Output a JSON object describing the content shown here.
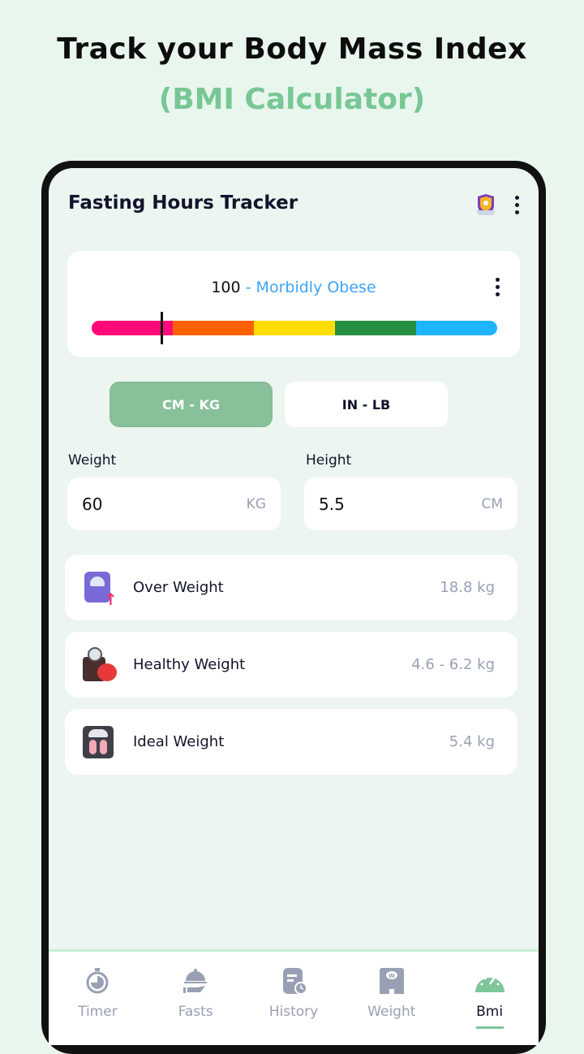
{
  "promo": {
    "headline": "Track your Body Mass Index",
    "subheadline": "(BMI Calculator)"
  },
  "app": {
    "title": "Fasting Hours Tracker",
    "icons": [
      "trophy-icon",
      "more-vertical-icon"
    ]
  },
  "bmi_card": {
    "value": "100",
    "category": "- Morbidly Obese",
    "scale_colors": [
      "#ff0a78",
      "#ff6000",
      "#ffdd00",
      "#248f42",
      "#1db4fb"
    ],
    "marker_position_percent": 17
  },
  "units": {
    "metric": "CM - KG",
    "imperial": "IN - LB",
    "selected": "CM - KG"
  },
  "weight": {
    "label": "Weight",
    "value": "60",
    "unit": "KG"
  },
  "height": {
    "label": "Height",
    "value": "5.5",
    "unit": "CM"
  },
  "results": [
    {
      "label": "Over Weight",
      "value": "18.8 kg",
      "icon": "scale-up-icon"
    },
    {
      "label": "Healthy Weight",
      "value": "4.6 - 6.2 kg",
      "icon": "scale-apple-icon"
    },
    {
      "label": "Ideal Weight",
      "value": "5.4 kg",
      "icon": "scale-feet-icon"
    }
  ],
  "nav": [
    {
      "label": "Timer"
    },
    {
      "label": "Fasts"
    },
    {
      "label": "History"
    },
    {
      "label": "Weight"
    },
    {
      "label": "Bmi",
      "active": true
    }
  ],
  "colors": {
    "accent": "#7fc59a",
    "background": "#ecf5f0"
  }
}
